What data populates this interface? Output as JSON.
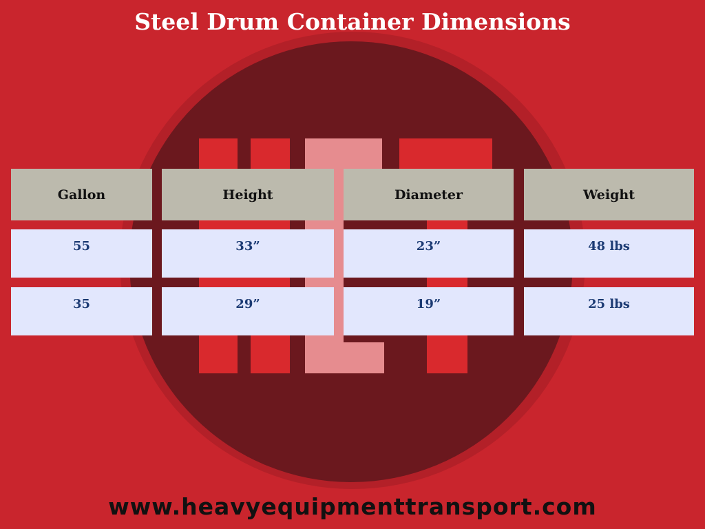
{
  "title": "Steel Drum Container Dimensions",
  "colors": {
    "background": "#c9252d",
    "circle": "#6b181e",
    "header_cell": "#bcbaad",
    "value_cell": "#e2e7fd",
    "value_text": "#1b3a73"
  },
  "logo": {
    "letters": "HET"
  },
  "table": {
    "headers": [
      "Gallon",
      "Height",
      "Diameter",
      "Weight"
    ],
    "rows": [
      [
        "55",
        "33”",
        "23”",
        "48 lbs"
      ],
      [
        "35",
        "29”",
        "19”",
        "25 lbs"
      ]
    ]
  },
  "footer": {
    "url": "www.heavyequipmenttransport.com"
  }
}
